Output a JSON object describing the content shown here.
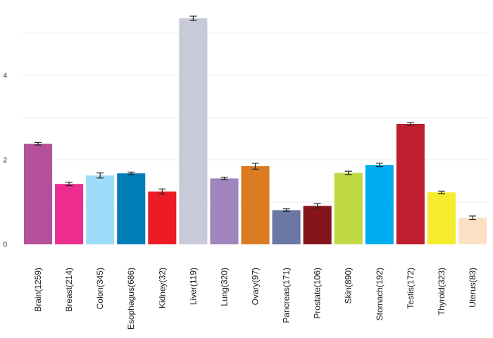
{
  "chart_data": {
    "type": "bar",
    "title": "",
    "xlabel": "",
    "ylabel": "",
    "ylim": [
      0,
      5.8
    ],
    "grid": true,
    "legend": "none",
    "yticks": [
      "0",
      "2",
      "4"
    ],
    "categories": [
      "Brain(1259)",
      "Breast(214)",
      "Colon(345)",
      "Esophagus(686)",
      "Kidney(32)",
      "Liver(119)",
      "Lung(320)",
      "Ovary(97)",
      "Pancreas(171)",
      "Prostate(106)",
      "Skin(890)",
      "Stomach(192)",
      "Testis(172)",
      "Thyroid(323)",
      "Uterus(83)"
    ],
    "values": [
      2.38,
      1.43,
      1.63,
      1.68,
      1.25,
      5.35,
      1.56,
      1.85,
      0.81,
      0.91,
      1.69,
      1.88,
      2.85,
      1.23,
      0.63
    ],
    "errors": [
      0.03,
      0.04,
      0.06,
      0.03,
      0.06,
      0.05,
      0.03,
      0.07,
      0.03,
      0.05,
      0.04,
      0.04,
      0.03,
      0.03,
      0.04
    ],
    "colors": [
      "#b5509b",
      "#ec2d8f",
      "#9ddcf8",
      "#007db7",
      "#ed1c24",
      "#c8cad9",
      "#a284bf",
      "#dc7c22",
      "#6a78a3",
      "#84161a",
      "#c0d944",
      "#00aeef",
      "#bf1e2e",
      "#f5ec2f",
      "#fbe0c3"
    ]
  }
}
